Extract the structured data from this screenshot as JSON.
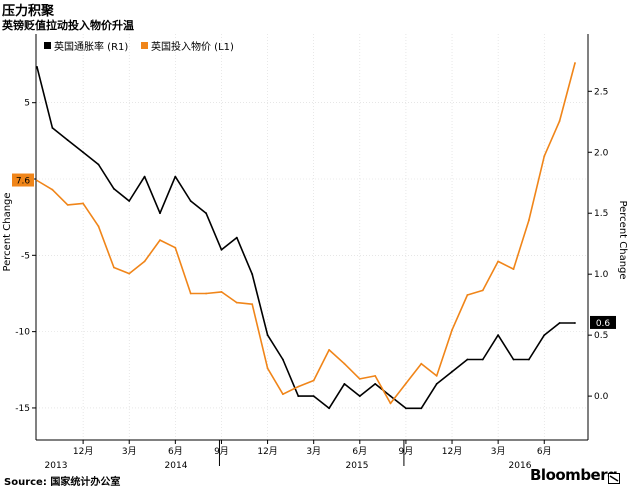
{
  "header": {
    "title": "压力积聚",
    "subtitle": "英镑贬值拉动投入物价升温"
  },
  "footer": {
    "source": "Source: 国家统计办公室",
    "brand": "Bloomberg"
  },
  "chart_data": {
    "type": "line",
    "ylabel_left": "Percent Change",
    "ylabel_right": "Percent Change",
    "left_axis": {
      "ticks": [
        5,
        0,
        -5,
        -10,
        -15
      ],
      "range": [
        -17.1,
        9.5
      ]
    },
    "right_axis": {
      "ticks": [
        2.5,
        2.0,
        1.5,
        1.0,
        0.5,
        0.0
      ],
      "range": [
        -0.36,
        2.97
      ]
    },
    "x_month_labels": [
      "12月",
      "3月",
      "6月",
      "9月",
      "12月",
      "3月",
      "6月",
      "9月",
      "12月",
      "3月",
      "6月"
    ],
    "x_year_labels": [
      "2013",
      "2014",
      "2015",
      "2016"
    ],
    "legend": {
      "position": "top-left",
      "entries": [
        "英国通胀率 (R1)",
        "英国投入物价 (L1)"
      ]
    },
    "series": [
      {
        "name": "英国通胀率 (R1)",
        "axis": "right",
        "color": "#000000",
        "values": [
          2.7,
          2.2,
          2.1,
          2.0,
          1.9,
          1.7,
          1.6,
          1.8,
          1.5,
          1.8,
          1.6,
          1.5,
          1.2,
          1.3,
          1.0,
          0.5,
          0.3,
          0.0,
          0.0,
          -0.1,
          0.1,
          0.0,
          0.1,
          0.0,
          -0.1,
          -0.1,
          0.1,
          0.2,
          0.3,
          0.3,
          0.5,
          0.3,
          0.3,
          0.5,
          0.6,
          0.6
        ]
      },
      {
        "name": "英国投入物价 (L1)",
        "axis": "left",
        "color": "#F08519",
        "values": [
          -0.1,
          -0.7,
          -1.7,
          -1.6,
          -3.1,
          -5.8,
          -6.2,
          -5.4,
          -4.0,
          -4.5,
          -7.5,
          -7.5,
          -7.4,
          -8.1,
          -8.2,
          -12.4,
          -14.1,
          -13.6,
          -13.2,
          -11.2,
          -12.1,
          -13.1,
          -12.9,
          -14.7,
          -13.4,
          -12.1,
          -12.9,
          -9.9,
          -7.6,
          -7.3,
          -5.4,
          -5.9,
          -2.7,
          1.5,
          3.8,
          7.6
        ]
      }
    ],
    "callouts": {
      "left_last": "7.6",
      "right_last": "0.6"
    }
  }
}
